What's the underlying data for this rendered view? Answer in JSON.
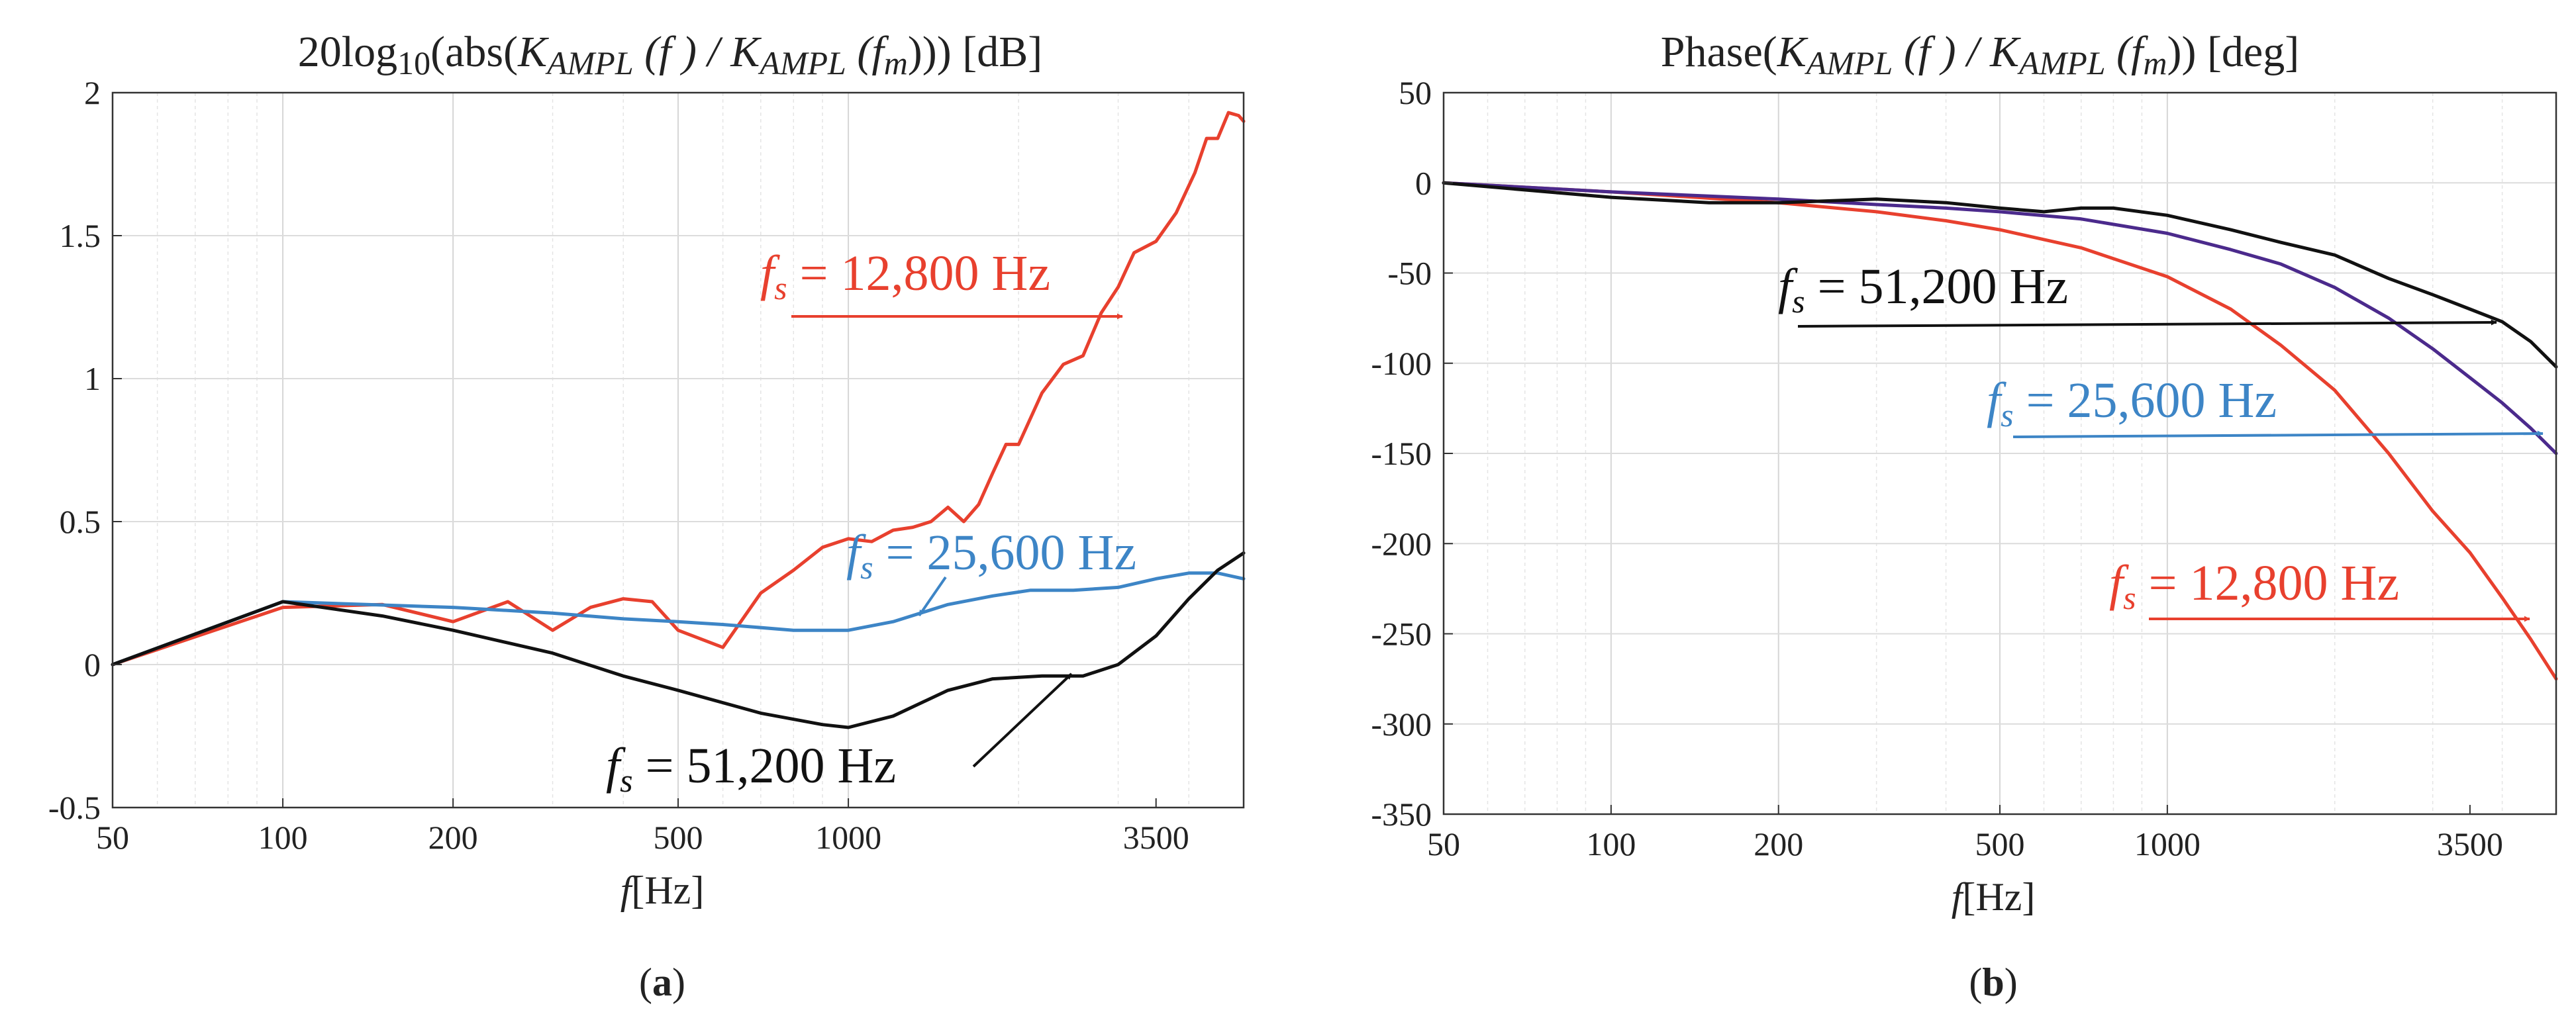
{
  "chart_data": [
    {
      "panel": "a",
      "type": "line",
      "panel_label_prefix": "(",
      "panel_label_letter": "a",
      "panel_label_suffix": ")",
      "title_parts": {
        "prefix": "20log",
        "sub": "10",
        "mid": "(abs(",
        "K": "K",
        "K_sub": "AMPL",
        "f_arg": " (f ) / ",
        "K2": "K",
        "K2_sub": "AMPL",
        "fm_open": " (f",
        "fm_sub": "m",
        "close": "))) [dB]"
      },
      "xlabel_var": "f",
      "xlabel_unit": "[Hz]",
      "xscale": "log",
      "xlim": [
        50,
        5000
      ],
      "ylim": [
        -0.5,
        2
      ],
      "x_ticks": [
        50,
        100,
        200,
        500,
        1000,
        3500
      ],
      "x_tick_labels": [
        "50",
        "100",
        "200",
        "500",
        "1000",
        "3500"
      ],
      "y_ticks": [
        -0.5,
        0,
        0.5,
        1,
        1.5,
        2
      ],
      "y_tick_labels": [
        "-0.5",
        "0",
        "0.5",
        "1",
        "1.5",
        "2"
      ],
      "series": [
        {
          "name": "f_s = 12,800 Hz",
          "color": "#e8402e",
          "x": [
            50,
            100,
            150,
            200,
            250,
            300,
            350,
            400,
            450,
            500,
            600,
            700,
            800,
            900,
            1000,
            1100,
            1200,
            1300,
            1400,
            1500,
            1600,
            1700,
            1800,
            1900,
            2000,
            2200,
            2400,
            2600,
            2800,
            3000,
            3200,
            3500,
            3800,
            4100,
            4300,
            4500,
            4700,
            4900,
            5000
          ],
          "values": [
            0.0,
            0.2,
            0.21,
            0.15,
            0.22,
            0.12,
            0.2,
            0.23,
            0.22,
            0.12,
            0.06,
            0.25,
            0.33,
            0.41,
            0.44,
            0.43,
            0.47,
            0.48,
            0.5,
            0.55,
            0.5,
            0.56,
            0.67,
            0.77,
            0.77,
            0.95,
            1.05,
            1.08,
            1.23,
            1.32,
            1.44,
            1.48,
            1.58,
            1.72,
            1.84,
            1.84,
            1.93,
            1.92,
            1.9
          ]
        },
        {
          "name": "f_s = 25,600 Hz",
          "color": "#3d85c6",
          "x": [
            50,
            100,
            200,
            300,
            400,
            500,
            600,
            800,
            1000,
            1200,
            1500,
            1800,
            2100,
            2500,
            3000,
            3500,
            4000,
            4500,
            5000
          ],
          "values": [
            0.0,
            0.22,
            0.2,
            0.18,
            0.16,
            0.15,
            0.14,
            0.12,
            0.12,
            0.15,
            0.21,
            0.24,
            0.26,
            0.26,
            0.27,
            0.3,
            0.32,
            0.32,
            0.3
          ]
        },
        {
          "name": "f_s = 51,200 Hz",
          "color": "#111111",
          "x": [
            50,
            100,
            150,
            200,
            300,
            400,
            500,
            700,
            900,
            1000,
            1200,
            1500,
            1800,
            2200,
            2600,
            3000,
            3500,
            4000,
            4500,
            5000
          ],
          "values": [
            0.0,
            0.22,
            0.17,
            0.12,
            0.04,
            -0.04,
            -0.09,
            -0.17,
            -0.21,
            -0.22,
            -0.18,
            -0.09,
            -0.05,
            -0.04,
            -0.04,
            0.0,
            0.1,
            0.23,
            0.33,
            0.39
          ]
        }
      ],
      "annotations": [
        {
          "text_var": "f",
          "text_sub": "s",
          "text_rest": " = 12,800 Hz",
          "color": "#e8402e"
        },
        {
          "text_var": "f",
          "text_sub": "s",
          "text_rest": " = 25,600 Hz",
          "color": "#3d85c6"
        },
        {
          "text_var": "f",
          "text_sub": "s",
          "text_rest": " = 51,200 Hz",
          "color": "#111111"
        }
      ]
    },
    {
      "panel": "b",
      "type": "line",
      "panel_label_prefix": "(",
      "panel_label_letter": "b",
      "panel_label_suffix": ")",
      "title_parts": {
        "prefix": "Phase(",
        "K": "K",
        "K_sub": "AMPL",
        "f_arg": " (f ) / ",
        "K2": "K",
        "K2_sub": "AMPL",
        "fm_open": " (f",
        "fm_sub": "m",
        "close": ")) [deg]"
      },
      "xlabel_var": "f",
      "xlabel_unit": "[Hz]",
      "xscale": "log",
      "xlim": [
        50,
        5000
      ],
      "ylim": [
        -350,
        50
      ],
      "x_ticks": [
        50,
        100,
        200,
        500,
        1000,
        3500
      ],
      "x_tick_labels": [
        "50",
        "100",
        "200",
        "500",
        "1000",
        "3500"
      ],
      "y_ticks": [
        -350,
        -300,
        -250,
        -200,
        -150,
        -100,
        -50,
        0,
        50
      ],
      "y_tick_labels": [
        "-350",
        "-300",
        "-250",
        "-200",
        "-150",
        "-100",
        "-50",
        "0",
        "50"
      ],
      "series": [
        {
          "name": "f_s = 12,800 Hz",
          "color": "#e8402e",
          "x": [
            50,
            100,
            200,
            300,
            400,
            500,
            700,
            1000,
            1300,
            1600,
            2000,
            2500,
            3000,
            3500,
            4000,
            4500,
            5000
          ],
          "values": [
            0,
            -5,
            -11,
            -16,
            -21,
            -26,
            -36,
            -52,
            -70,
            -90,
            -115,
            -150,
            -182,
            -205,
            -230,
            -253,
            -275
          ]
        },
        {
          "name": "f_s = 25,600 Hz",
          "color": "#4b2a8c",
          "x": [
            50,
            100,
            200,
            300,
            400,
            500,
            700,
            1000,
            1300,
            1600,
            2000,
            2500,
            3000,
            3500,
            4000,
            4500,
            5000
          ],
          "values": [
            0,
            -5,
            -9,
            -12,
            -14,
            -16,
            -20,
            -28,
            -37,
            -45,
            -58,
            -75,
            -92,
            -108,
            -122,
            -136,
            -150
          ]
        },
        {
          "name": "f_s = 51,200 Hz",
          "color": "#111111",
          "x": [
            50,
            100,
            150,
            200,
            300,
            400,
            500,
            600,
            700,
            800,
            1000,
            1300,
            1600,
            2000,
            2500,
            3000,
            3500,
            4000,
            4500,
            5000
          ],
          "values": [
            0,
            -8,
            -11,
            -11,
            -9,
            -11,
            -14,
            -16,
            -14,
            -14,
            -18,
            -26,
            -33,
            -40,
            -53,
            -62,
            -70,
            -77,
            -88,
            -102
          ]
        }
      ],
      "annotations": [
        {
          "text_var": "f",
          "text_sub": "s",
          "text_rest": " = 51,200 Hz",
          "color": "#111111"
        },
        {
          "text_var": "f",
          "text_sub": "s",
          "text_rest": " = 25,600 Hz",
          "color": "#3d85c6"
        },
        {
          "text_var": "f",
          "text_sub": "s",
          "text_rest": " = 12,800 Hz",
          "color": "#e8402e"
        }
      ]
    }
  ]
}
